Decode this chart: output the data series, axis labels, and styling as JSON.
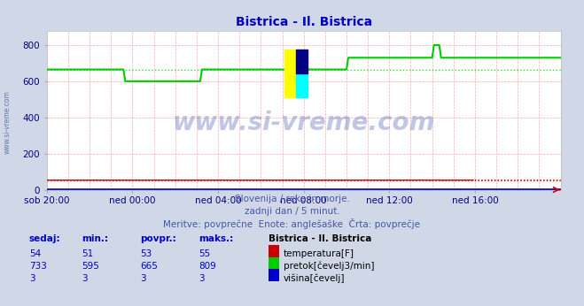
{
  "title": "Bistrica - Il. Bistrica",
  "title_color": "#0000cc",
  "bg_color": "#d0d8e8",
  "plot_bg_color": "#ffffff",
  "xlabel_color": "#000080",
  "ylabel_color": "#000080",
  "xticklabels": [
    "sob 20:00",
    "ned 00:00",
    "ned 04:00",
    "ned 08:00",
    "ned 12:00",
    "ned 16:00"
  ],
  "xtick_pos": [
    0,
    240,
    480,
    720,
    960,
    1200
  ],
  "yticks": [
    0,
    200,
    400,
    600,
    800
  ],
  "ymin": 0,
  "ymax": 880,
  "xmin": 0,
  "xmax": 1440,
  "watermark_text": "www.si-vreme.com",
  "subtitle1": "Slovenija / reke in morje.",
  "subtitle2": "zadnji dan / 5 minut.",
  "subtitle3": "Meritve: povprečne  Enote: anglešaške  Črta: povprečje",
  "legend_title": "Bistrica - Il. Bistrica",
  "legend_items": [
    {
      "label": "temperatura[F]",
      "color": "#cc0000"
    },
    {
      "label": "pretok[čevelj3/min]",
      "color": "#00cc00"
    },
    {
      "label": "višina[čevelj]",
      "color": "#0000cc"
    }
  ],
  "table_headers": [
    "sedaj:",
    "min.:",
    "povpr.:",
    "maks.:"
  ],
  "table_data": [
    [
      54,
      51,
      53,
      55
    ],
    [
      733,
      595,
      665,
      809
    ],
    [
      3,
      3,
      3,
      3
    ]
  ],
  "n_points": 289,
  "flow_avg": 665,
  "temp_avg": 53,
  "height_avg": 3,
  "temp_color": "#cc0000",
  "flow_color": "#00cc00",
  "height_color": "#0000cc",
  "grid_color": "#ffaaaa",
  "avg_line_color_flow": "#00cc00",
  "avg_line_color_temp": "#cc0000",
  "avg_line_color_height": "#0000cc",
  "watermark_color": "#3344aa",
  "watermark_alpha": 0.3,
  "left_label": "www.si-vreme.com",
  "left_label_color": "#6677aa"
}
